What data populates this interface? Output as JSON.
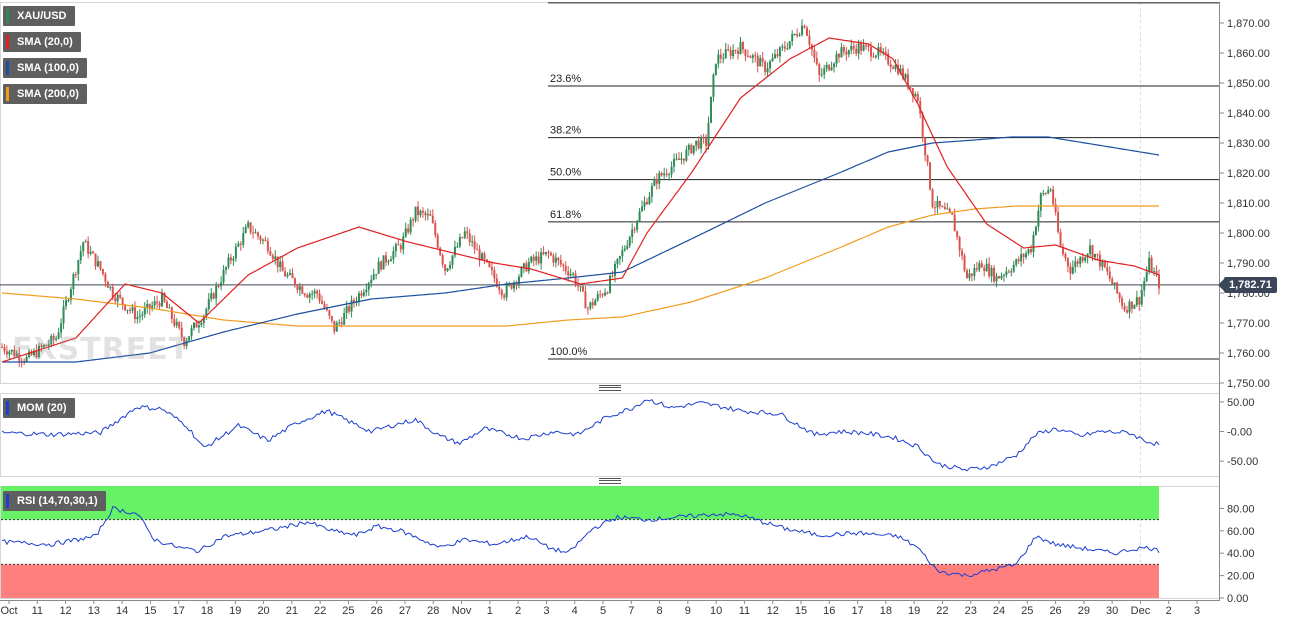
{
  "chart_data": [
    {
      "type": "candlestick",
      "symbol": "XAU/USD",
      "last_price": "1,782.71",
      "ylim": [
        1750,
        1877
      ],
      "y_ticks": [
        "1,750.00",
        "1,760.00",
        "1,770.00",
        "1,780.00",
        "1,790.00",
        "1,800.00",
        "1,810.00",
        "1,820.00",
        "1,830.00",
        "1,840.00",
        "1,850.00",
        "1,860.00",
        "1,870.00"
      ],
      "x_ticks": [
        "Oct",
        "11",
        "12",
        "13",
        "14",
        "15",
        "17",
        "18",
        "19",
        "20",
        "21",
        "22",
        "25",
        "26",
        "27",
        "28",
        "Nov",
        "1",
        "2",
        "3",
        "4",
        "5",
        "7",
        "8",
        "9",
        "10",
        "11",
        "12",
        "15",
        "16",
        "17",
        "18",
        "19",
        "22",
        "23",
        "24",
        "25",
        "26",
        "29",
        "30",
        "Dec",
        "2",
        "3"
      ],
      "legend": [
        {
          "label": "XAU/USD",
          "color": "#2e8b57"
        },
        {
          "label": "SMA (20,0)",
          "color": "#e02020"
        },
        {
          "label": "SMA (100,0)",
          "color": "#1c4fa0"
        },
        {
          "label": "SMA (200,0)",
          "color": "#f29a1c"
        }
      ],
      "fibonacci": [
        {
          "label": "",
          "value": 1876.7
        },
        {
          "label": "23.6%",
          "value": 1849.0
        },
        {
          "label": "38.2%",
          "value": 1831.8
        },
        {
          "label": "50.0%",
          "value": 1817.8
        },
        {
          "label": "61.8%",
          "value": 1803.7
        },
        {
          "label": "100.0%",
          "value": 1758.0
        }
      ],
      "close_anchors": [
        [
          0,
          1762
        ],
        [
          10,
          1758
        ],
        [
          22,
          1765
        ],
        [
          33,
          1797
        ],
        [
          40,
          1788
        ],
        [
          45,
          1780
        ],
        [
          55,
          1772
        ],
        [
          65,
          1778
        ],
        [
          74,
          1764
        ],
        [
          82,
          1773
        ],
        [
          92,
          1790
        ],
        [
          100,
          1802
        ],
        [
          108,
          1796
        ],
        [
          114,
          1787
        ],
        [
          124,
          1780
        ],
        [
          128,
          1780
        ],
        [
          135,
          1768
        ],
        [
          142,
          1776
        ],
        [
          153,
          1789
        ],
        [
          162,
          1796
        ],
        [
          168,
          1807
        ],
        [
          174,
          1805
        ],
        [
          180,
          1788
        ],
        [
          188,
          1800
        ],
        [
          196,
          1790
        ],
        [
          204,
          1780
        ],
        [
          214,
          1790
        ],
        [
          222,
          1793
        ],
        [
          232,
          1786
        ],
        [
          238,
          1775
        ],
        [
          246,
          1782
        ],
        [
          258,
          1805
        ],
        [
          266,
          1818
        ],
        [
          276,
          1825
        ],
        [
          282,
          1830
        ],
        [
          286,
          1830
        ],
        [
          290,
          1858
        ],
        [
          300,
          1862
        ],
        [
          310,
          1855
        ],
        [
          318,
          1862
        ],
        [
          326,
          1870
        ],
        [
          332,
          1852
        ],
        [
          340,
          1860
        ],
        [
          348,
          1862
        ],
        [
          356,
          1860
        ],
        [
          364,
          1855
        ],
        [
          372,
          1845
        ],
        [
          378,
          1810
        ],
        [
          386,
          1805
        ],
        [
          392,
          1785
        ],
        [
          398,
          1790
        ],
        [
          404,
          1785
        ],
        [
          412,
          1790
        ],
        [
          418,
          1795
        ],
        [
          422,
          1812
        ],
        [
          426,
          1815
        ],
        [
          430,
          1795
        ],
        [
          434,
          1788
        ],
        [
          442,
          1795
        ],
        [
          448,
          1788
        ],
        [
          456,
          1775
        ],
        [
          462,
          1778
        ],
        [
          466,
          1790
        ],
        [
          470,
          1783
        ]
      ],
      "sma20_anchors": [
        [
          0,
          1757
        ],
        [
          30,
          1765
        ],
        [
          50,
          1783
        ],
        [
          65,
          1780
        ],
        [
          80,
          1770
        ],
        [
          100,
          1786
        ],
        [
          120,
          1795
        ],
        [
          145,
          1802
        ],
        [
          165,
          1797
        ],
        [
          185,
          1793
        ],
        [
          200,
          1790
        ],
        [
          215,
          1788
        ],
        [
          235,
          1783
        ],
        [
          252,
          1785
        ],
        [
          262,
          1800
        ],
        [
          280,
          1820
        ],
        [
          300,
          1845
        ],
        [
          320,
          1858
        ],
        [
          336,
          1865
        ],
        [
          352,
          1863
        ],
        [
          362,
          1858
        ],
        [
          372,
          1843
        ],
        [
          384,
          1822
        ],
        [
          400,
          1803
        ],
        [
          415,
          1795
        ],
        [
          428,
          1796
        ],
        [
          445,
          1791
        ],
        [
          460,
          1789
        ],
        [
          470,
          1786
        ]
      ],
      "sma100_anchors": [
        [
          0,
          1757
        ],
        [
          30,
          1757
        ],
        [
          60,
          1760
        ],
        [
          90,
          1767
        ],
        [
          120,
          1773
        ],
        [
          150,
          1778
        ],
        [
          180,
          1780
        ],
        [
          205,
          1783
        ],
        [
          230,
          1785
        ],
        [
          252,
          1787
        ],
        [
          280,
          1798
        ],
        [
          310,
          1810
        ],
        [
          340,
          1820
        ],
        [
          360,
          1827
        ],
        [
          378,
          1830
        ],
        [
          395,
          1831
        ],
        [
          410,
          1832
        ],
        [
          425,
          1832
        ],
        [
          440,
          1830
        ],
        [
          455,
          1828
        ],
        [
          470,
          1826
        ]
      ],
      "sma200_anchors": [
        [
          0,
          1780
        ],
        [
          30,
          1778
        ],
        [
          60,
          1775
        ],
        [
          90,
          1771
        ],
        [
          120,
          1769
        ],
        [
          150,
          1769
        ],
        [
          180,
          1769
        ],
        [
          205,
          1769
        ],
        [
          230,
          1771
        ],
        [
          252,
          1772
        ],
        [
          280,
          1777
        ],
        [
          310,
          1785
        ],
        [
          340,
          1795
        ],
        [
          360,
          1802
        ],
        [
          378,
          1806
        ],
        [
          395,
          1808
        ],
        [
          412,
          1809
        ],
        [
          430,
          1809
        ],
        [
          450,
          1809
        ],
        [
          470,
          1809
        ]
      ]
    },
    {
      "type": "line",
      "name": "MOM (20)",
      "color": "#1c3fd0",
      "ylim": [
        -75,
        65
      ],
      "y_ticks": [
        "50.00",
        "-0.00",
        "-50.00"
      ],
      "anchors": [
        [
          0,
          -2
        ],
        [
          20,
          -5
        ],
        [
          40,
          -2
        ],
        [
          55,
          42
        ],
        [
          65,
          38
        ],
        [
          75,
          10
        ],
        [
          82,
          -28
        ],
        [
          96,
          10
        ],
        [
          108,
          -15
        ],
        [
          120,
          15
        ],
        [
          132,
          35
        ],
        [
          142,
          15
        ],
        [
          150,
          0
        ],
        [
          160,
          12
        ],
        [
          168,
          20
        ],
        [
          178,
          -8
        ],
        [
          186,
          -20
        ],
        [
          196,
          5
        ],
        [
          212,
          -12
        ],
        [
          224,
          0
        ],
        [
          234,
          -5
        ],
        [
          246,
          25
        ],
        [
          256,
          40
        ],
        [
          262,
          55
        ],
        [
          272,
          40
        ],
        [
          284,
          48
        ],
        [
          292,
          42
        ],
        [
          300,
          35
        ],
        [
          316,
          30
        ],
        [
          330,
          -5
        ],
        [
          340,
          0
        ],
        [
          350,
          -2
        ],
        [
          362,
          -10
        ],
        [
          372,
          -25
        ],
        [
          380,
          -55
        ],
        [
          392,
          -65
        ],
        [
          402,
          -58
        ],
        [
          412,
          -40
        ],
        [
          420,
          -5
        ],
        [
          428,
          5
        ],
        [
          438,
          -8
        ],
        [
          446,
          0
        ],
        [
          458,
          -2
        ],
        [
          464,
          -15
        ],
        [
          470,
          -22
        ]
      ]
    },
    {
      "type": "line",
      "name": "RSI (14,70,30,1)",
      "color": "#1c3fd0",
      "ylim": [
        0,
        100
      ],
      "y_ticks": [
        "80.00",
        "60.00",
        "40.00",
        "20.00",
        "0.00"
      ],
      "overbought": 70,
      "oversold": 30,
      "anchors": [
        [
          0,
          50
        ],
        [
          20,
          48
        ],
        [
          38,
          55
        ],
        [
          45,
          80
        ],
        [
          55,
          75
        ],
        [
          62,
          52
        ],
        [
          72,
          45
        ],
        [
          80,
          42
        ],
        [
          90,
          55
        ],
        [
          100,
          58
        ],
        [
          112,
          62
        ],
        [
          124,
          68
        ],
        [
          134,
          60
        ],
        [
          144,
          56
        ],
        [
          152,
          64
        ],
        [
          162,
          60
        ],
        [
          178,
          45
        ],
        [
          188,
          52
        ],
        [
          200,
          48
        ],
        [
          214,
          55
        ],
        [
          222,
          45
        ],
        [
          230,
          40
        ],
        [
          240,
          62
        ],
        [
          250,
          72
        ],
        [
          262,
          70
        ],
        [
          274,
          72
        ],
        [
          290,
          75
        ],
        [
          300,
          74
        ],
        [
          318,
          62
        ],
        [
          332,
          56
        ],
        [
          348,
          58
        ],
        [
          364,
          55
        ],
        [
          372,
          45
        ],
        [
          380,
          24
        ],
        [
          392,
          20
        ],
        [
          402,
          25
        ],
        [
          412,
          30
        ],
        [
          420,
          55
        ],
        [
          428,
          48
        ],
        [
          440,
          44
        ],
        [
          452,
          40
        ],
        [
          460,
          44
        ],
        [
          466,
          45
        ],
        [
          470,
          42
        ]
      ]
    }
  ]
}
